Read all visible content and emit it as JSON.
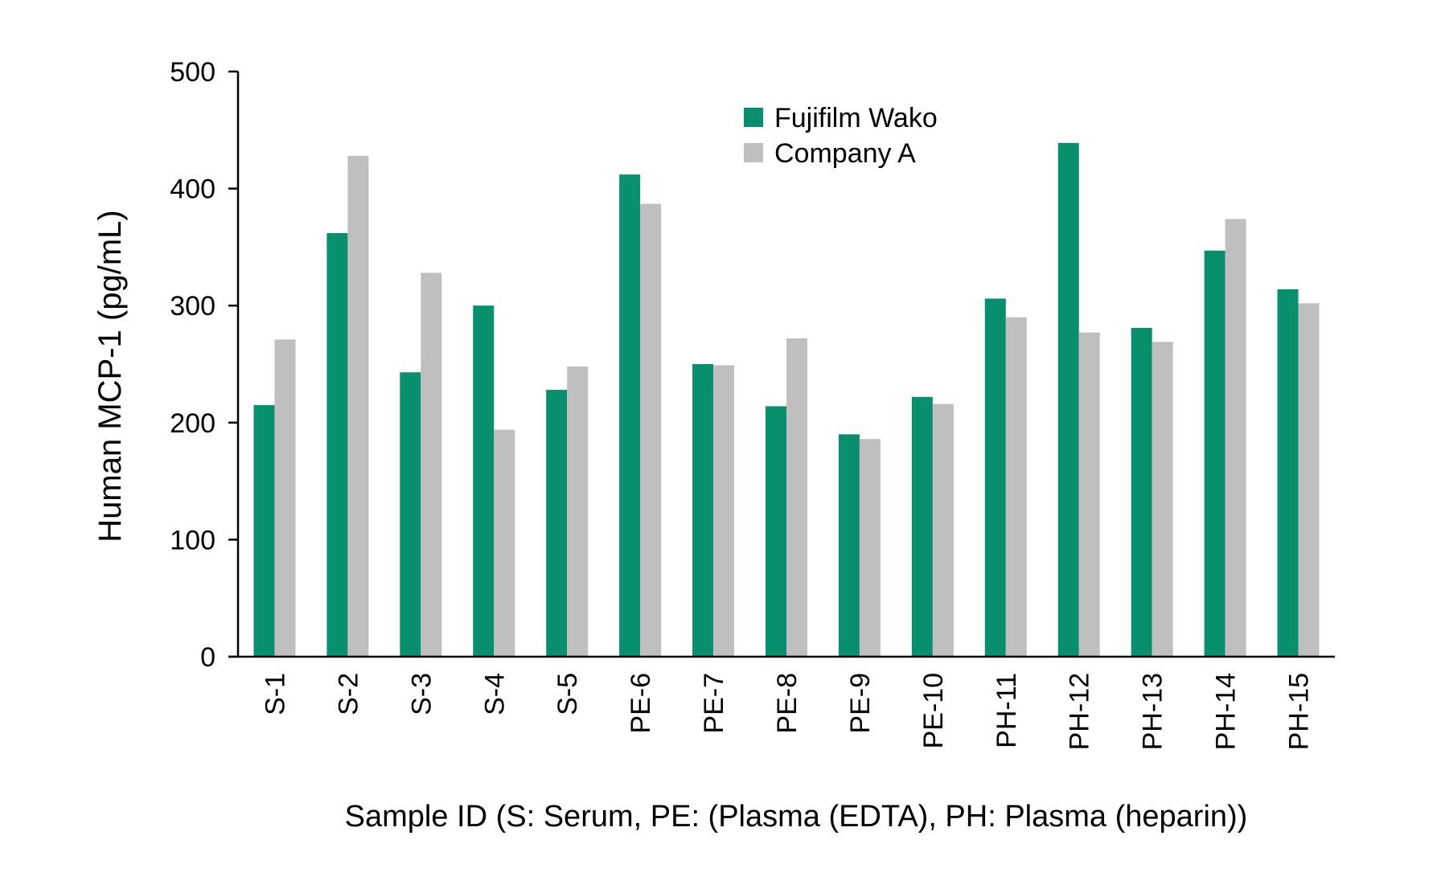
{
  "chart_data": {
    "type": "bar",
    "title": "",
    "xlabel": "Sample ID (S: Serum, PE: (Plasma (EDTA), PH: Plasma (heparin))",
    "ylabel": "Human MCP-1 (pg/mL)",
    "ylim": [
      0,
      500
    ],
    "yticks": [
      0,
      100,
      200,
      300,
      400,
      500
    ],
    "grid": false,
    "legend_position": "top-center",
    "categories": [
      "S-1",
      "S-2",
      "S-3",
      "S-4",
      "S-5",
      "PE-6",
      "PE-7",
      "PE-8",
      "PE-9",
      "PE-10",
      "PH-11",
      "PH-12",
      "PH-13",
      "PH-14",
      "PH-15"
    ],
    "series": [
      {
        "name": "Fujifilm Wako",
        "color": "#078f6e",
        "values": [
          215,
          362,
          243,
          300,
          228,
          412,
          250,
          214,
          190,
          222,
          306,
          439,
          281,
          347,
          314
        ]
      },
      {
        "name": "Company A",
        "color": "#bfbfbf",
        "values": [
          271,
          428,
          328,
          194,
          248,
          387,
          249,
          272,
          186,
          216,
          290,
          277,
          269,
          374,
          302
        ]
      }
    ]
  }
}
